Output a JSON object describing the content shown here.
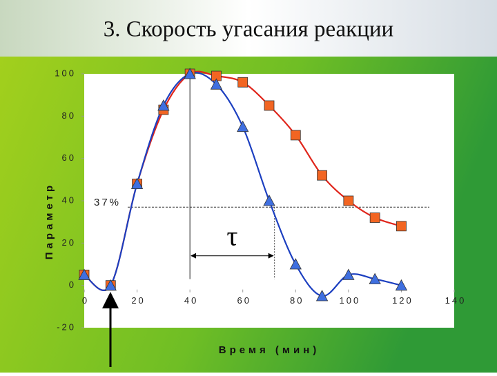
{
  "chart_data": {
    "type": "line",
    "title": "3. Скорость угасания реакции",
    "x_label": "Время (мин)",
    "y_label": "Параметр",
    "x": [
      0,
      10,
      20,
      30,
      40,
      50,
      60,
      70,
      80,
      90,
      100,
      110,
      120
    ],
    "series": [
      {
        "name": "red",
        "color": "#e0251b",
        "marker_color": "#f26522",
        "marker": "square",
        "values": [
          5,
          0,
          48,
          83,
          100,
          99,
          96,
          85,
          71,
          52,
          40,
          32,
          28
        ]
      },
      {
        "name": "blue",
        "color": "#1c3fc0",
        "marker_color": "#3f6fe0",
        "marker": "triangle",
        "values": [
          5,
          0,
          48,
          85,
          100,
          95,
          75,
          40,
          10,
          -5,
          5,
          3,
          0
        ]
      }
    ],
    "xlim": [
      0,
      140
    ],
    "xticks": [
      0,
      20,
      40,
      60,
      80,
      100,
      120,
      140
    ],
    "ylim": [
      -20,
      100
    ],
    "yticks": [
      -20,
      0,
      20,
      40,
      60,
      80,
      100
    ],
    "reference_line": {
      "value": 37,
      "label": "37%"
    },
    "tau_range": [
      40,
      72
    ],
    "tau_label": "τ"
  }
}
